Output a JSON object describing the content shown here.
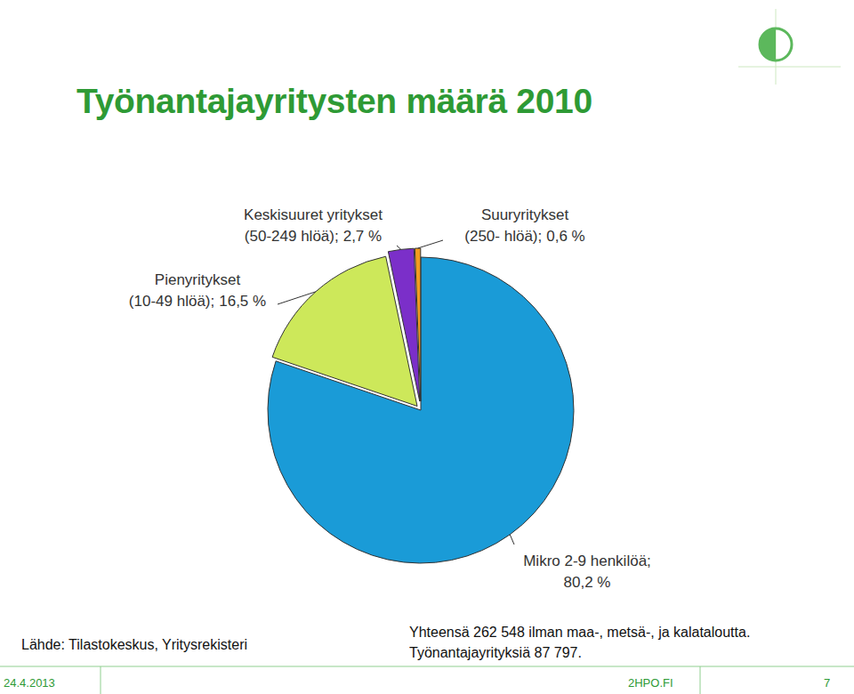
{
  "chart_data": {
    "type": "pie",
    "title": "Työnantajayritysten määrä 2010",
    "categories": [
      "Mikro 2-9 henkilöä;",
      "Pienyritykset (10-49 hlöä);",
      "Keskisuuret yritykset (50-249 hlöä);",
      "Suuryritykset (250- hlöä);"
    ],
    "values": [
      80.2,
      16.5,
      2.7,
      0.6
    ],
    "value_labels": [
      "80,2 %",
      "16,5 %",
      "2,7 %",
      "0,6 %"
    ],
    "colors": [
      "#1a9bd7",
      "#cde85a",
      "#7b2fc9",
      "#f39b1f"
    ],
    "data_labels": true,
    "annotations": [
      "Lähde: Tilastokeskus, Yritysrekisteri",
      "Yhteensä 262 548 ilman maa-, metsä-, ja kalataloutta.",
      "Työnantajayrityksiä 87 797."
    ]
  },
  "footer": {
    "date": "24.4.2013",
    "site": "2HPO.FI",
    "page": 7
  }
}
